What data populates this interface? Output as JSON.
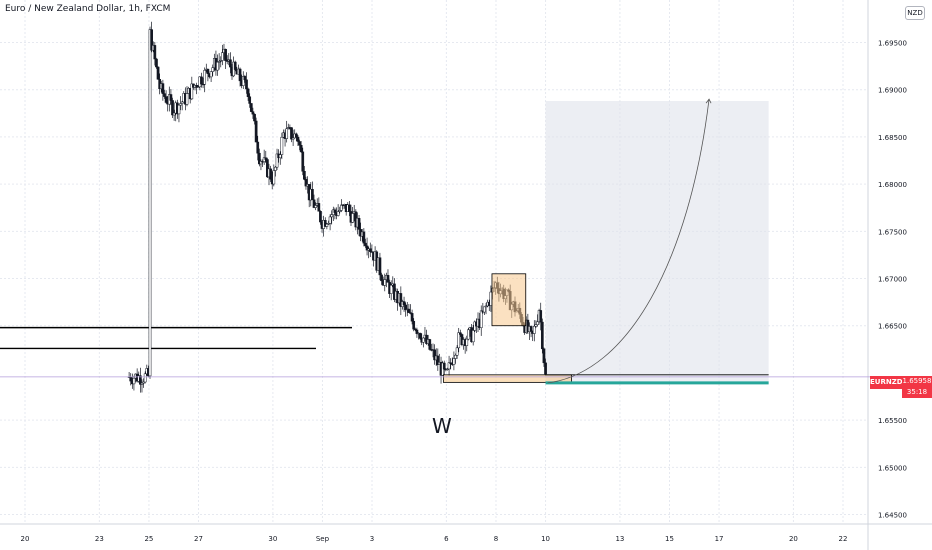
{
  "title": "Euro / New Zealand Dollar, 1h, FXCM",
  "currency_badge": "NZD",
  "price_tag": {
    "symbol": "EURNZD",
    "price": "1.65958",
    "countdown": "35:18"
  },
  "annotation_label": "W",
  "colors": {
    "up": "#26a69a",
    "down": "#ef5350",
    "candle": "#131722",
    "grid": "#e6e9f0",
    "orange_box": "#f7c98e",
    "projection": "#e0e3eb",
    "teal_line": "#26a69a",
    "current_price_line": "#b39ddb"
  },
  "chart_data": {
    "type": "candlestick",
    "y_ticks": [
      "1.69500",
      "1.69000",
      "1.68500",
      "1.68000",
      "1.67500",
      "1.67000",
      "1.66500",
      "1.65958",
      "1.65500",
      "1.65000",
      "1.64500"
    ],
    "x_ticks": [
      "20",
      "23",
      "25",
      "27",
      "30",
      "Sep",
      "3",
      "6",
      "8",
      "10",
      "13",
      "15",
      "17",
      "20",
      "22"
    ],
    "ylim": [
      1.644,
      1.6995
    ],
    "series": [
      {
        "values": [
          {
            "x": "Aug 25",
            "close": 1.6965
          },
          {
            "x": "Aug 25",
            "close": 1.69
          },
          {
            "x": "Aug 26",
            "close": 1.688
          },
          {
            "x": "Aug 26",
            "close": 1.689
          },
          {
            "x": "Aug 27",
            "close": 1.691
          },
          {
            "x": "Aug 28",
            "close": 1.6935
          },
          {
            "x": "Aug 29",
            "close": 1.69
          },
          {
            "x": "Aug 29",
            "close": 1.683
          },
          {
            "x": "Aug 30",
            "close": 1.6805
          },
          {
            "x": "Aug 30",
            "close": 1.6855
          },
          {
            "x": "Aug 31",
            "close": 1.685
          },
          {
            "x": "Aug 31",
            "close": 1.679
          },
          {
            "x": "Sep 1",
            "close": 1.676
          },
          {
            "x": "Sep 1",
            "close": 1.677
          },
          {
            "x": "Sep 2",
            "close": 1.6775
          },
          {
            "x": "Sep 3",
            "close": 1.673
          },
          {
            "x": "Sep 3",
            "close": 1.67
          },
          {
            "x": "Sep 4",
            "close": 1.668
          },
          {
            "x": "Sep 5",
            "close": 1.664
          },
          {
            "x": "Sep 6",
            "close": 1.6595
          },
          {
            "x": "Sep 6",
            "close": 1.6635
          },
          {
            "x": "Sep 7",
            "close": 1.664
          },
          {
            "x": "Sep 7",
            "close": 1.666
          },
          {
            "x": "Sep 8",
            "close": 1.6695
          },
          {
            "x": "Sep 8",
            "close": 1.668
          },
          {
            "x": "Sep 9",
            "close": 1.666
          },
          {
            "x": "Sep 9",
            "close": 1.6635
          },
          {
            "x": "Sep 9",
            "close": 1.667
          },
          {
            "x": "Sep 10",
            "close": 1.6596
          }
        ]
      }
    ],
    "annotations": {
      "horizontal_lines": [
        1.6648,
        1.6626
      ],
      "orange_box": {
        "x": [
          "Sep 8",
          "Sep 9"
        ],
        "y": [
          1.665,
          1.6705
        ]
      },
      "projection_box": {
        "x": [
          "Sep 10",
          "Sep 19"
        ],
        "y": [
          1.659,
          1.6888
        ]
      },
      "support_zone": {
        "y": [
          1.659,
          1.6598
        ]
      },
      "projection_curve_end": 1.689,
      "current_price": 1.65958
    }
  }
}
